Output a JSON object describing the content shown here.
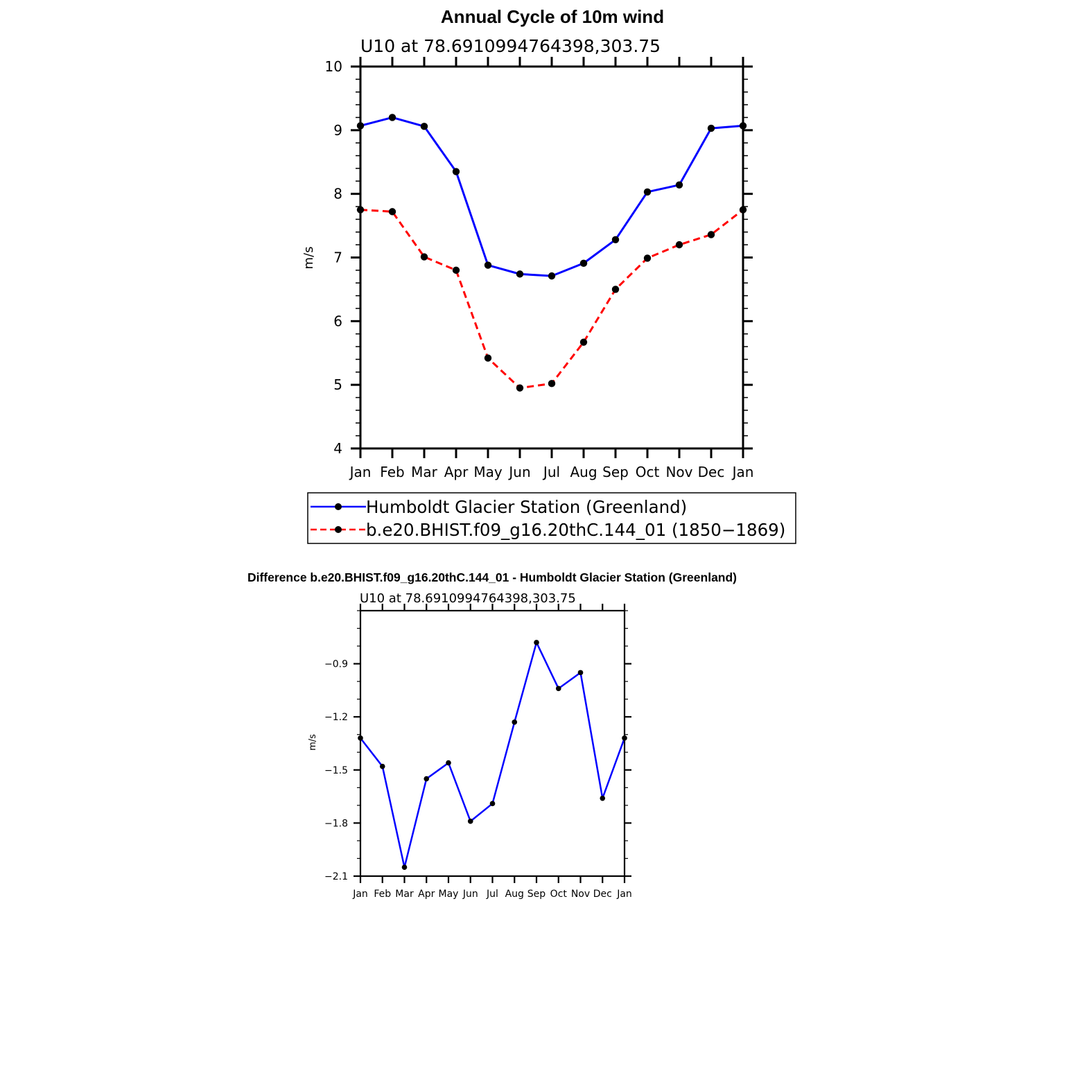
{
  "chart_data": [
    {
      "type": "line",
      "title": "Annual Cycle of 10m wind",
      "subtitle": "U10  at  78.6910994764398,303.75",
      "xlabel": "",
      "ylabel": "m/s",
      "ylim": [
        4,
        10
      ],
      "yticks": [
        "4",
        "5",
        "6",
        "7",
        "8",
        "9",
        "10"
      ],
      "categories": [
        "Jan",
        "Feb",
        "Mar",
        "Apr",
        "May",
        "Jun",
        "Jul",
        "Aug",
        "Sep",
        "Oct",
        "Nov",
        "Dec",
        "Jan"
      ],
      "series": [
        {
          "name": "Humboldt Glacier Station (Greenland)",
          "color": "#0000ff",
          "style": "solid",
          "values": [
            9.07,
            9.2,
            9.06,
            8.35,
            6.88,
            6.74,
            6.71,
            6.91,
            7.28,
            8.03,
            8.14,
            9.03,
            9.07
          ]
        },
        {
          "name": "b.e20.BHIST.f09_g16.20thC.144_01 (1850−1869)",
          "color": "#ff0000",
          "style": "dashed",
          "values": [
            7.75,
            7.72,
            7.01,
            6.8,
            5.42,
            4.95,
            5.02,
            5.67,
            6.5,
            6.99,
            7.2,
            7.36,
            7.75
          ]
        }
      ]
    },
    {
      "type": "line",
      "title": "Difference b.e20.BHIST.f09_g16.20thC.144_01 - Humboldt Glacier Station (Greenland)",
      "subtitle": "U10  at  78.6910994764398,303.75",
      "xlabel": "",
      "ylabel": "m/s",
      "ylim": [
        -2.1,
        -0.6
      ],
      "yticks": [
        "−2.1",
        "−1.8",
        "−1.5",
        "−1.2",
        "−0.9"
      ],
      "categories": [
        "Jan",
        "Feb",
        "Mar",
        "Apr",
        "May",
        "Jun",
        "Jul",
        "Aug",
        "Sep",
        "Oct",
        "Nov",
        "Dec",
        "Jan"
      ],
      "series": [
        {
          "name": "Difference",
          "color": "#0000ff",
          "style": "solid",
          "values": [
            -1.32,
            -1.48,
            -2.05,
            -1.55,
            -1.46,
            -1.79,
            -1.69,
            -1.23,
            -0.78,
            -1.04,
            -0.95,
            -1.66,
            -1.32
          ]
        }
      ]
    }
  ]
}
